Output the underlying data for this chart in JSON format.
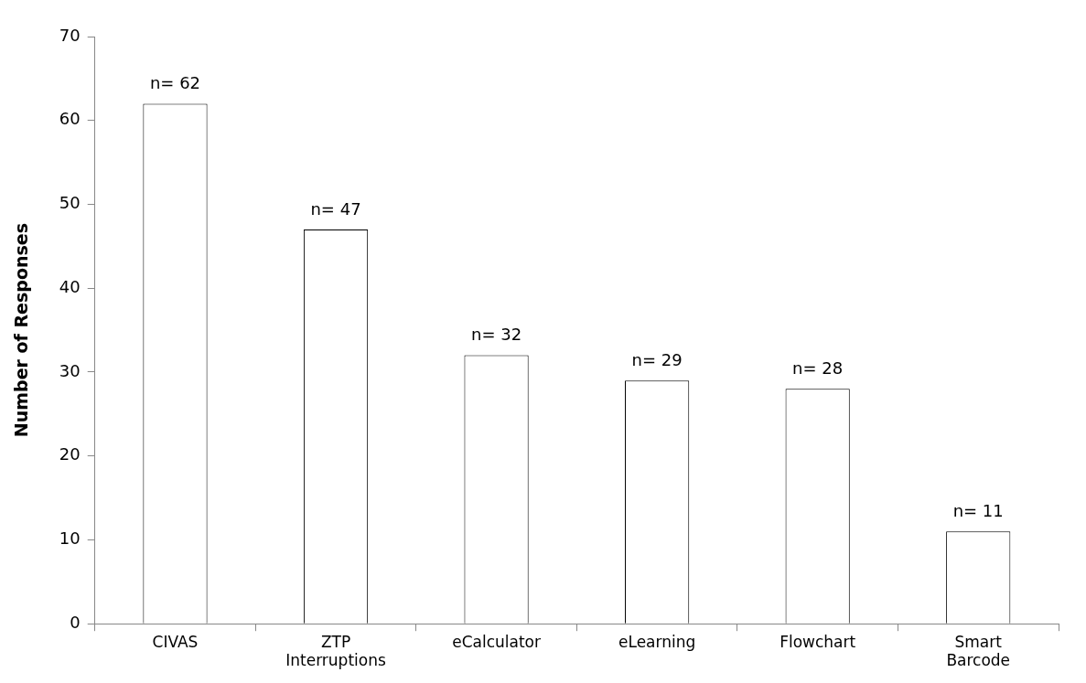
{
  "chart_data": {
    "type": "bar",
    "ylabel": "Number of Responses",
    "categories": [
      "CIVAS",
      "ZTP Interruptions",
      "eCalculator",
      "eLearning",
      "Flowchart",
      "Smart Barcode"
    ],
    "values": [
      62,
      47,
      32,
      29,
      28,
      11
    ],
    "value_labels": [
      "n= 62",
      "n= 47",
      "n= 32",
      "n= 29",
      "n= 28",
      "n= 11"
    ],
    "color": "#ffffff",
    "ylim": [
      0,
      70
    ],
    "yticks": [
      0,
      10,
      20,
      30,
      40,
      50,
      60,
      70
    ],
    "grid": false,
    "legend": false
  }
}
